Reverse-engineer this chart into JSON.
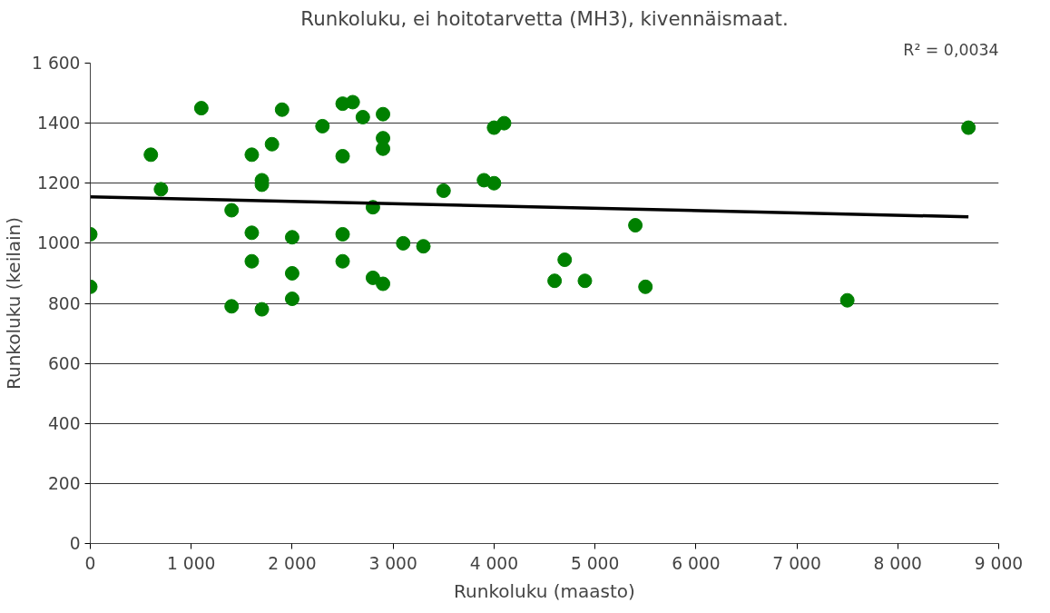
{
  "chart_data": {
    "type": "scatter",
    "title": "Runkoluku, ei hoitotarvetta (MH3), kivennäismaat.",
    "xlabel": "Runkoluku (maasto)",
    "ylabel": "Runkoluku (keilain)",
    "annotations": [
      "R² = 0,0034"
    ],
    "series": [
      {
        "color": "#008000",
        "marker": "circle",
        "x": [
          0,
          0,
          600,
          700,
          1100,
          1400,
          1400,
          1600,
          1600,
          1600,
          1700,
          1700,
          1700,
          1800,
          1900,
          2000,
          2000,
          2000,
          2300,
          2500,
          2500,
          2500,
          2500,
          2600,
          2700,
          2800,
          2800,
          2900,
          2900,
          2900,
          2900,
          3100,
          3300,
          3500,
          3900,
          4000,
          4000,
          4100,
          4600,
          4700,
          4900,
          5400,
          5500,
          7500,
          8700
        ],
        "values": [
          1030,
          855,
          1295,
          1180,
          1450,
          1110,
          790,
          1295,
          1035,
          940,
          1210,
          1195,
          780,
          1330,
          1445,
          1020,
          900,
          815,
          1390,
          1465,
          1290,
          1030,
          940,
          1470,
          1420,
          1120,
          885,
          1430,
          1350,
          1315,
          865,
          1000,
          990,
          1175,
          1210,
          1385,
          1200,
          1400,
          875,
          945,
          875,
          1060,
          855,
          810,
          1385
        ]
      },
      {
        "type": "line",
        "color": "#000000",
        "x": [
          0,
          8700
        ],
        "values": [
          1155,
          1088
        ]
      }
    ],
    "xlim": [
      0,
      9000
    ],
    "ylim": [
      0,
      1600
    ],
    "xticks": [
      0,
      {
        "value": 1000,
        "label": "1 000"
      },
      {
        "value": 2000,
        "label": "2 000"
      },
      {
        "value": 3000,
        "label": "3 000"
      },
      {
        "value": 4000,
        "label": "4 000"
      },
      {
        "value": 5000,
        "label": "5 000"
      },
      {
        "value": 6000,
        "label": "6 000"
      },
      {
        "value": 7000,
        "label": "7 000"
      },
      {
        "value": 8000,
        "label": "8 000"
      },
      {
        "value": 9000,
        "label": "9 000"
      }
    ],
    "yticks": [
      0,
      200,
      400,
      600,
      800,
      1000,
      1200,
      1400,
      {
        "value": 1600,
        "label": "1 600"
      }
    ],
    "grid": "y"
  }
}
